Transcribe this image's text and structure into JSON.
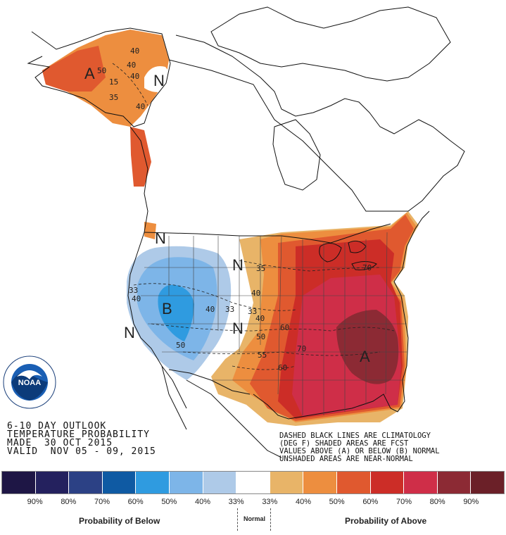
{
  "outlook": {
    "title_line1": "6-10 DAY OUTLOOK",
    "title_line2": "TEMPERATURE PROBABILITY",
    "made_label": "MADE",
    "made_date": "30 OCT 2015",
    "valid_label": "VALID",
    "valid_dates": "NOV 05 - 09, 2015"
  },
  "notes": {
    "line1": "DASHED BLACK LINES ARE CLIMATOLOGY",
    "line2": "(DEG F) SHADED AREAS ARE FCST",
    "line3": "VALUES ABOVE (A) OR BELOW (B) NORMAL",
    "line4": "UNSHADED AREAS ARE NEAR-NORMAL"
  },
  "logo": {
    "text": "NOAA",
    "ring_text": "NATIONAL OCEANIC AND ATMOSPHERIC ADMINISTRATION • U.S. DEPARTMENT OF COMMERCE"
  },
  "map_labels": {
    "A_alaska": "A",
    "A_southeast": "A",
    "B_west": "B",
    "N_alaska": "N",
    "N_northwest": "N",
    "N_plains_north": "N",
    "N_plains_south": "N",
    "N_southwest": "N",
    "ak_40a": "40",
    "ak_40b": "40",
    "ak_50": "50",
    "ak_40c": "40",
    "ak_15": "15",
    "ak_35": "35",
    "ak_40d": "40",
    "w_33": "33",
    "w_40": "40",
    "w_40b": "40",
    "w_33b": "33",
    "w_50": "50",
    "e_35": "35",
    "e_40": "40",
    "e_33": "33",
    "e_40b": "40",
    "e_60": "60",
    "e_50": "50",
    "e_70": "70",
    "e_55": "55",
    "e_60b": "60",
    "e_70b": "70"
  },
  "legend": {
    "swatch_colors": [
      "#1e1645",
      "#24215e",
      "#2c4185",
      "#0f5aa3",
      "#2f9be0",
      "#7db5e8",
      "#aecae8",
      "#ffffff",
      "#e8b468",
      "#ed8e3f",
      "#e0592f",
      "#cc2d27",
      "#cf2e48",
      "#8c2a34",
      "#6b2028"
    ],
    "below_labels": [
      "90%",
      "80%",
      "70%",
      "60%",
      "50%",
      "40%",
      "33%"
    ],
    "above_labels": [
      "33%",
      "40%",
      "50%",
      "60%",
      "70%",
      "80%",
      "90%"
    ],
    "below_title": "Probability of Below",
    "normal_title": "Normal",
    "above_title": "Probability of Above"
  }
}
